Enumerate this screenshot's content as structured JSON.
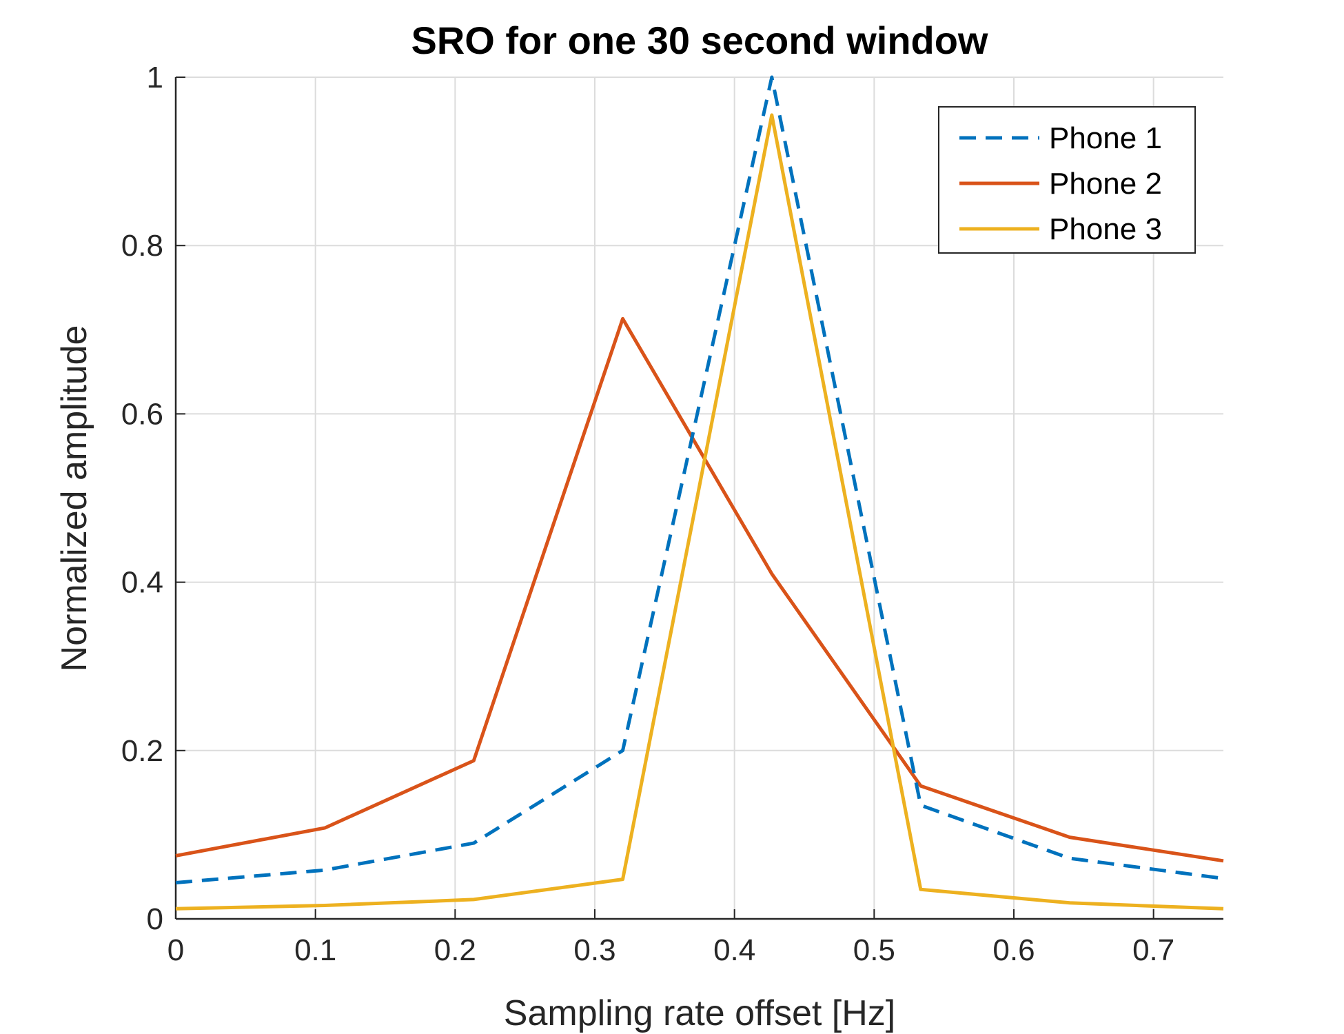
{
  "chart_data": {
    "type": "line",
    "title": "SRO for one 30 second window",
    "xlabel": "Sampling rate offset [Hz]",
    "ylabel": "Normalized amplitude",
    "xlim": [
      0,
      0.75
    ],
    "ylim": [
      0,
      1
    ],
    "xticks": [
      0,
      0.1,
      0.2,
      0.3,
      0.4,
      0.5,
      0.6,
      0.7
    ],
    "xtick_labels": [
      "0",
      "0.1",
      "0.2",
      "0.3",
      "0.4",
      "0.5",
      "0.6",
      "0.7"
    ],
    "yticks": [
      0,
      0.2,
      0.4,
      0.6,
      0.8,
      1
    ],
    "ytick_labels": [
      "0",
      "0.2",
      "0.4",
      "0.6",
      "0.8",
      "1"
    ],
    "grid": true,
    "legend_position": "top-right",
    "series": [
      {
        "name": "Phone 1",
        "color": "#0072BD",
        "style": "dashed",
        "x": [
          0,
          0.1067,
          0.2133,
          0.32,
          0.4267,
          0.5333,
          0.64,
          0.75
        ],
        "y": [
          0.043,
          0.058,
          0.09,
          0.2,
          1.0,
          0.135,
          0.072,
          0.048
        ]
      },
      {
        "name": "Phone 2",
        "color": "#D95319",
        "style": "solid",
        "x": [
          0,
          0.1067,
          0.2133,
          0.32,
          0.4267,
          0.5333,
          0.64,
          0.75
        ],
        "y": [
          0.075,
          0.108,
          0.188,
          0.713,
          0.41,
          0.158,
          0.097,
          0.069
        ]
      },
      {
        "name": "Phone 3",
        "color": "#EDB120",
        "style": "solid",
        "x": [
          0,
          0.1067,
          0.2133,
          0.32,
          0.4267,
          0.5333,
          0.64,
          0.75
        ],
        "y": [
          0.012,
          0.016,
          0.023,
          0.047,
          0.955,
          0.035,
          0.019,
          0.012
        ]
      }
    ]
  }
}
